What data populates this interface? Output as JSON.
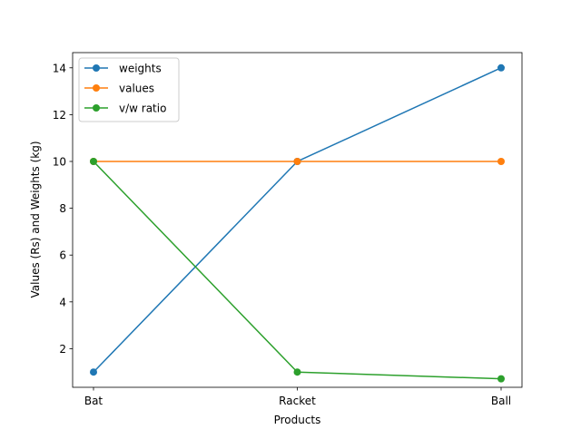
{
  "chart_data": {
    "type": "line",
    "xlabel": "Products",
    "ylabel": "Values (Rs) and Weights (kg)",
    "categories": [
      "Bat",
      "Racket",
      "Ball"
    ],
    "ylim": [
      0.35,
      14.65
    ],
    "yticks": [
      2,
      4,
      6,
      8,
      10,
      12,
      14
    ],
    "grid": false,
    "legend_position": "top-left",
    "series": [
      {
        "name": "weights",
        "color": "#1f77b4",
        "marker": "circle",
        "values": [
          1,
          10,
          14
        ]
      },
      {
        "name": "values",
        "color": "#ff7f0e",
        "marker": "circle",
        "values": [
          10,
          10,
          10
        ]
      },
      {
        "name": "v/w ratio",
        "color": "#2ca02c",
        "marker": "circle",
        "values": [
          10,
          1,
          0.714
        ]
      }
    ]
  }
}
